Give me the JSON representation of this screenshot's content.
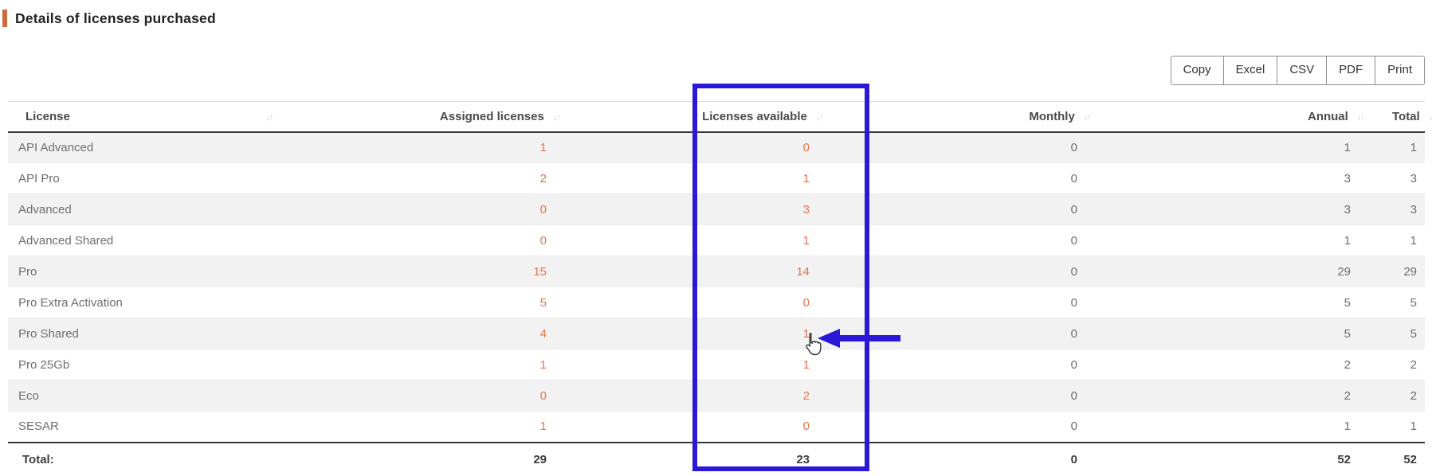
{
  "page": {
    "title": "Details of licenses purchased"
  },
  "toolbar": {
    "copy_label": "Copy",
    "excel_label": "Excel",
    "csv_label": "CSV",
    "pdf_label": "PDF",
    "print_label": "Print"
  },
  "table": {
    "sort_icon": "↓↑",
    "columns": [
      {
        "label": "License"
      },
      {
        "label": "Assigned licenses"
      },
      {
        "label": "Licenses available"
      },
      {
        "label": "Monthly"
      },
      {
        "label": "Annual"
      },
      {
        "label": "Total"
      }
    ],
    "rows": [
      {
        "license": "API Advanced",
        "assigned": "1",
        "available": "0",
        "monthly": "0",
        "annual": "1",
        "total": "1"
      },
      {
        "license": "API Pro",
        "assigned": "2",
        "available": "1",
        "monthly": "0",
        "annual": "3",
        "total": "3"
      },
      {
        "license": "Advanced",
        "assigned": "0",
        "available": "3",
        "monthly": "0",
        "annual": "3",
        "total": "3"
      },
      {
        "license": "Advanced Shared",
        "assigned": "0",
        "available": "1",
        "monthly": "0",
        "annual": "1",
        "total": "1"
      },
      {
        "license": "Pro",
        "assigned": "15",
        "available": "14",
        "monthly": "0",
        "annual": "29",
        "total": "29"
      },
      {
        "license": "Pro Extra Activation",
        "assigned": "5",
        "available": "0",
        "monthly": "0",
        "annual": "5",
        "total": "5"
      },
      {
        "license": "Pro Shared",
        "assigned": "4",
        "available": "1",
        "monthly": "0",
        "annual": "5",
        "total": "5"
      },
      {
        "license": "Pro 25Gb",
        "assigned": "1",
        "available": "1",
        "monthly": "0",
        "annual": "2",
        "total": "2"
      },
      {
        "license": "Eco",
        "assigned": "0",
        "available": "2",
        "monthly": "0",
        "annual": "2",
        "total": "2"
      },
      {
        "license": "SESAR",
        "assigned": "1",
        "available": "0",
        "monthly": "0",
        "annual": "1",
        "total": "1"
      }
    ],
    "footer": {
      "label": "Total:",
      "assigned": "29",
      "available": "23",
      "monthly": "0",
      "annual": "52",
      "total": "52"
    }
  },
  "colors": {
    "accent_orange": "#cf6a3e",
    "value_orange": "#e7724a",
    "annotation_blue": "#2a18d6",
    "stripe_gray": "#f2f2f2"
  }
}
